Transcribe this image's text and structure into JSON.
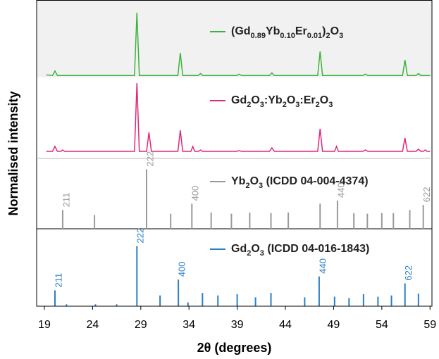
{
  "chart_data": [
    {
      "type": "line",
      "ylabel": "Normalised intensity",
      "xlim": [
        18.2,
        59.2
      ],
      "ylim": [
        0,
        100
      ],
      "background": "#f1f1f1",
      "x": [
        19.2,
        19.85,
        20.1,
        20.35,
        28.35,
        28.6,
        28.85,
        32.85,
        33.1,
        33.35,
        34.95,
        35.2,
        35.45,
        38.95,
        39.2,
        39.45,
        42.35,
        42.6,
        42.85,
        47.35,
        47.6,
        47.85,
        52.05,
        52.3,
        52.55,
        56.15,
        56.4,
        56.65,
        57.55,
        57.8,
        58.05,
        59.0
      ],
      "series": [
        {
          "name": "(Gd0.89Yb0.10Er0.01)2O3",
          "color": "#3db33d",
          "values": [
            4,
            3,
            10,
            3,
            3,
            100,
            3,
            3,
            38,
            3,
            3,
            6,
            3,
            3,
            5,
            3,
            3,
            7,
            3,
            3,
            40,
            3,
            3,
            5,
            3,
            3,
            27,
            3,
            3,
            6,
            3,
            3
          ]
        }
      ]
    },
    {
      "type": "line",
      "xlim": [
        18.2,
        59.2
      ],
      "ylim": [
        0,
        100
      ],
      "x": [
        19.2,
        19.85,
        20.1,
        20.35,
        20.7,
        20.9,
        21.1,
        28.35,
        28.6,
        28.85,
        29.6,
        29.85,
        30.1,
        32.85,
        33.1,
        33.35,
        34.2,
        34.4,
        34.6,
        35.0,
        35.2,
        35.4,
        38.95,
        39.2,
        39.45,
        42.35,
        42.6,
        42.85,
        47.35,
        47.6,
        47.85,
        49.1,
        49.3,
        49.5,
        52.05,
        52.3,
        52.55,
        56.15,
        56.4,
        56.65,
        57.55,
        57.8,
        58.05,
        58.3,
        58.5,
        58.7,
        59.0
      ],
      "series": [
        {
          "name": "Gd2O3:Yb2O3:Er2O3",
          "color": "#e0287a",
          "values": [
            3,
            3,
            10,
            3,
            3,
            5,
            3,
            3,
            100,
            3,
            3,
            30,
            3,
            3,
            33,
            3,
            3,
            10,
            3,
            3,
            5,
            3,
            3,
            4,
            3,
            3,
            8,
            3,
            3,
            35,
            3,
            3,
            10,
            3,
            3,
            5,
            3,
            3,
            22,
            3,
            3,
            6,
            3,
            3,
            5,
            3,
            3
          ]
        }
      ]
    },
    {
      "type": "stem",
      "xlim": [
        18.2,
        59.2
      ],
      "ylim": [
        0,
        100
      ],
      "x": [
        20.9,
        24.2,
        29.6,
        32.1,
        34.3,
        36.3,
        38.4,
        40.3,
        42.5,
        44.3,
        47.6,
        49.4,
        51.1,
        52.5,
        54.0,
        55.2,
        56.9,
        58.3
      ],
      "series": [
        {
          "name": "Yb2O3 (ICDD 04-004-4374)",
          "color": "#9a9a9a",
          "values": [
            30,
            22,
            95,
            24,
            40,
            26,
            24,
            26,
            25,
            26,
            40,
            45,
            25,
            24,
            25,
            25,
            30,
            38
          ]
        }
      ],
      "annotations": [
        {
          "x": 20.9,
          "label": "211"
        },
        {
          "x": 29.6,
          "label": "222"
        },
        {
          "x": 34.3,
          "label": "400"
        },
        {
          "x": 49.4,
          "label": "440"
        },
        {
          "x": 58.3,
          "label": "622"
        }
      ]
    },
    {
      "type": "stem",
      "xlim": [
        18.2,
        59.2
      ],
      "ylim": [
        0,
        100
      ],
      "xlabel": "2θ (degrees)",
      "xticks": [
        19,
        24,
        29,
        34,
        39,
        44,
        49,
        54,
        59
      ],
      "x": [
        20.1,
        21.3,
        24.3,
        26.5,
        28.6,
        31.0,
        32.9,
        33.9,
        35.4,
        37.0,
        39.0,
        40.9,
        42.5,
        46.0,
        47.5,
        49.1,
        50.6,
        52.1,
        53.6,
        55.0,
        56.4,
        57.8
      ],
      "series": [
        {
          "name": "Gd2O3 (ICDD 04-016-1843)",
          "color": "#2a7fc4",
          "values": [
            25,
            3,
            3,
            3,
            95,
            17,
            42,
            6,
            21,
            17,
            19,
            14,
            21,
            14,
            47,
            15,
            13,
            19,
            15,
            17,
            36,
            20
          ]
        }
      ],
      "annotations": [
        {
          "x": 20.1,
          "label": "211"
        },
        {
          "x": 28.6,
          "label": "222"
        },
        {
          "x": 32.9,
          "label": "400"
        },
        {
          "x": 47.5,
          "label": "440"
        },
        {
          "x": 56.4,
          "label": "622"
        }
      ]
    }
  ]
}
